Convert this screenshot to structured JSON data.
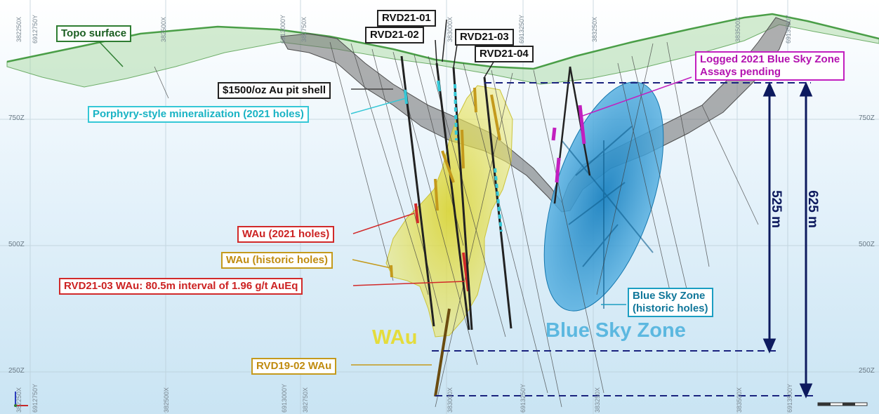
{
  "elevations": [
    "750Z",
    "500Z",
    "250Z"
  ],
  "coords": [
    "382250X",
    "6912750Y",
    "382500X",
    "6913000Y",
    "382750X",
    "383000X",
    "6913250Y",
    "383250X",
    "383500X",
    "6913500Y"
  ],
  "labels": {
    "topo": "Topo surface",
    "hole1": "RVD21-01",
    "hole2": "RVD21-02",
    "hole3": "RVD21-03",
    "hole4": "RVD21-04",
    "pit": "$1500/oz Au pit shell",
    "porphyry": "Porphyry-style  mineralization (2021 holes)",
    "logged": "Logged 2021 Blue Sky Zone\nAssays pending",
    "wau2021": "WAu (2021 holes)",
    "wauhist": "WAu (historic holes)",
    "interval": "RVD21-03 WAu: 80.5m interval of 1.96 g/t AuEq",
    "bsz_hist": "Blue Sky Zone\n(historic holes)",
    "rvd19": "RVD19-02 WAu",
    "wau_big": "WAu",
    "bsz_big": "Blue Sky Zone",
    "d525": "525 m",
    "d625": "625 m"
  },
  "colors": {
    "topo": "#2e7d32",
    "pit": "#555555",
    "porphyry": "#35c7d6",
    "wau": "#e8e24a",
    "wau_hist": "#c49a1c",
    "wau_2021": "#d12a2a",
    "bsz": "#1b8fc4",
    "logged": "#c21fbf",
    "dimension": "#0d1a5e"
  }
}
